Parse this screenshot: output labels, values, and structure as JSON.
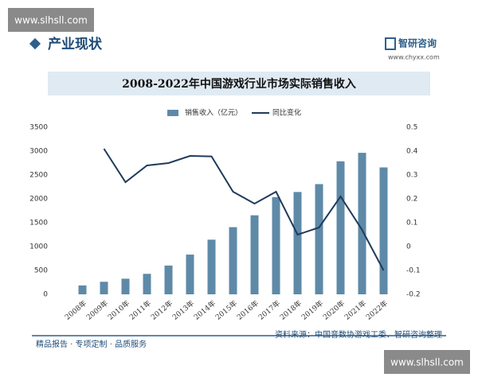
{
  "watermark_top": "www.slhsll.com",
  "watermark_bottom": "www.slhsll.com",
  "header": {
    "title": "产业现状",
    "brand": "智研咨询",
    "brand_url": "www.chyxx.com"
  },
  "footer": {
    "slogan": "精品报告 · 专项定制 · 品质服务",
    "source": "资料来源：中国音数协游戏工委、智研咨询整理"
  },
  "chart_data": {
    "type": "bar_line",
    "title": "2008-2022年中国游戏行业市场实际销售收入",
    "categories": [
      "2008年",
      "2009年",
      "2010年",
      "2011年",
      "2012年",
      "2013年",
      "2014年",
      "2015年",
      "2016年",
      "2017年",
      "2018年",
      "2019年",
      "2020年",
      "2021年",
      "2022年"
    ],
    "series": [
      {
        "name": "销售收入（亿元）",
        "type": "bar",
        "color": "#5e8aa8",
        "values": [
          186,
          263,
          327,
          429,
          603,
          832,
          1145,
          1407,
          1656,
          2036,
          2144,
          2309,
          2787,
          2965,
          2659
        ]
      },
      {
        "name": "同比变化",
        "type": "line",
        "axis": "y2",
        "color": "#1f3b5c",
        "values": [
          null,
          0.41,
          0.27,
          0.34,
          0.35,
          0.38,
          0.378,
          0.23,
          0.18,
          0.23,
          0.05,
          0.08,
          0.21,
          0.07,
          -0.1
        ]
      }
    ],
    "ylim": [
      0,
      3500
    ],
    "yticks": [
      0,
      500,
      1000,
      1500,
      2000,
      2500,
      3000,
      3500
    ],
    "y2lim": [
      -0.2,
      0.5
    ],
    "y2ticks": [
      -0.2,
      -0.1,
      0,
      0.1,
      0.2,
      0.3,
      0.4,
      0.5
    ],
    "grid": false
  }
}
